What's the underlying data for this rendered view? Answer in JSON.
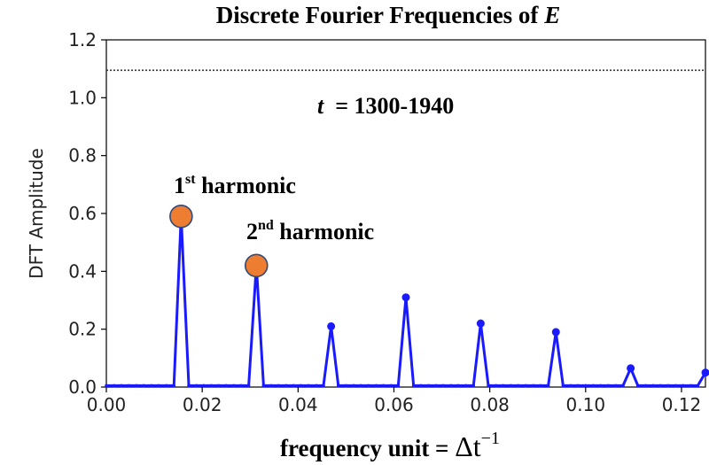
{
  "chart_data": {
    "type": "line",
    "title_prefix": "Discrete Fourier Frequencies of ",
    "title_var": "E",
    "xlabel_prefix": "frequency unit = ",
    "xlabel_symbol": "Δt",
    "xlabel_exp": "−1",
    "ylabel": "DFT Amplitude",
    "xlim": [
      0,
      0.125
    ],
    "ylim": [
      0,
      1.2
    ],
    "xticks": [
      "0.00",
      "0.02",
      "0.04",
      "0.06",
      "0.08",
      "0.10",
      "0.12"
    ],
    "xtick_values": [
      0,
      0.02,
      0.04,
      0.06,
      0.08,
      0.1,
      0.12
    ],
    "yticks": [
      "0.0",
      "0.2",
      "0.4",
      "0.6",
      "0.8",
      "1.0",
      "1.2"
    ],
    "ytick_values": [
      0,
      0.2,
      0.4,
      0.6,
      0.8,
      1.0,
      1.2
    ],
    "grid": false,
    "series": [
      {
        "color": "#1a1aff",
        "x": [
          0,
          0.0016,
          0.0031,
          0.0047,
          0.0063,
          0.0078,
          0.0094,
          0.0109,
          0.0125,
          0.0141,
          0.0156,
          0.0172,
          0.0188,
          0.0203,
          0.0219,
          0.0234,
          0.025,
          0.0266,
          0.0281,
          0.0297,
          0.0313,
          0.0328,
          0.0344,
          0.0359,
          0.0375,
          0.0391,
          0.0406,
          0.0422,
          0.0438,
          0.0453,
          0.0469,
          0.0484,
          0.05,
          0.0516,
          0.0531,
          0.0547,
          0.0563,
          0.0578,
          0.0594,
          0.0609,
          0.0625,
          0.0641,
          0.0656,
          0.0672,
          0.0688,
          0.0703,
          0.0719,
          0.0734,
          0.075,
          0.0766,
          0.0781,
          0.0797,
          0.0813,
          0.0828,
          0.0844,
          0.0859,
          0.0875,
          0.0891,
          0.0906,
          0.0922,
          0.0938,
          0.0953,
          0.0969,
          0.0984,
          0.1,
          0.1016,
          0.1031,
          0.1047,
          0.1063,
          0.1078,
          0.1094,
          0.1109,
          0.1125,
          0.1141,
          0.1156,
          0.1172,
          0.1188,
          0.1203,
          0.1219,
          0.1234,
          0.125
        ],
        "y": [
          0.005,
          0.005,
          0.005,
          0.005,
          0.005,
          0.005,
          0.005,
          0.005,
          0.005,
          0.005,
          0.59,
          0.005,
          0.005,
          0.005,
          0.005,
          0.005,
          0.005,
          0.005,
          0.005,
          0.005,
          0.42,
          0.005,
          0.005,
          0.005,
          0.005,
          0.005,
          0.005,
          0.005,
          0.005,
          0.005,
          0.21,
          0.005,
          0.005,
          0.005,
          0.005,
          0.005,
          0.005,
          0.005,
          0.005,
          0.005,
          0.31,
          0.005,
          0.005,
          0.005,
          0.005,
          0.005,
          0.005,
          0.005,
          0.005,
          0.005,
          0.22,
          0.005,
          0.005,
          0.005,
          0.005,
          0.005,
          0.005,
          0.005,
          0.005,
          0.005,
          0.19,
          0.005,
          0.005,
          0.005,
          0.005,
          0.005,
          0.005,
          0.005,
          0.005,
          0.005,
          0.065,
          0.005,
          0.005,
          0.005,
          0.005,
          0.005,
          0.005,
          0.005,
          0.005,
          0.005,
          0.05
        ]
      }
    ],
    "reference_line": {
      "y": 1.095,
      "style": "dotted",
      "color": "#333333"
    },
    "highlight_points": [
      {
        "x": 0.0156,
        "y": 0.59,
        "color": "#ed7d31",
        "label_main": "1",
        "label_sup": "st",
        "label_rest": " harmonic"
      },
      {
        "x": 0.0313,
        "y": 0.42,
        "color": "#ed7d31",
        "label_main": "2",
        "label_sup": "nd",
        "label_rest": " harmonic"
      }
    ],
    "annotation": {
      "var": "t",
      "text": "  = 1300-1940"
    }
  }
}
